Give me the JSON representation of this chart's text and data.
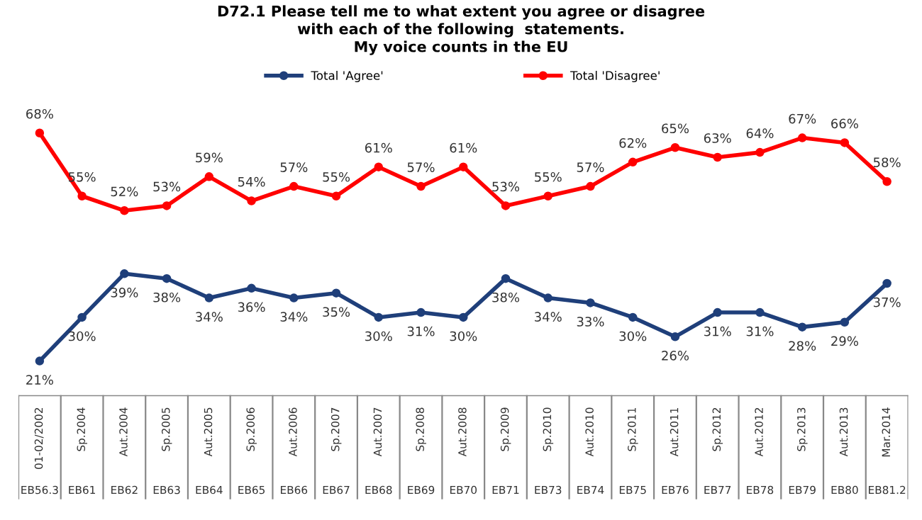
{
  "chart_data": {
    "type": "line",
    "title": "D72.1 Please tell me to what extent you agree or disagree\nwith each of the following  statements.\nMy voice counts in the EU",
    "categories": [
      "01-02/2002",
      "Sp.2004",
      "Aut.2004",
      "Sp.2005",
      "Aut.2005",
      "Sp.2006",
      "Aut.2006",
      "Sp.2007",
      "Aut.2007",
      "Sp.2008",
      "Aut.2008",
      "Sp.2009",
      "Sp.2010",
      "Aut.2010",
      "Sp.2011",
      "Aut.2011",
      "Sp.2012",
      "Aut.2012",
      "Sp.2013",
      "Aut.2013",
      "Mar.2014"
    ],
    "annotations": [
      "EB56.3",
      "EB61",
      "EB62",
      "EB63",
      "EB64",
      "EB65",
      "EB66",
      "EB67",
      "EB68",
      "EB69",
      "EB70",
      "EB71",
      "EB73",
      "EB74",
      "EB75",
      "EB76",
      "EB77",
      "EB78",
      "EB79",
      "EB80",
      "EB81.2"
    ],
    "series": [
      {
        "name": "Total 'Agree'",
        "color": "#1f3f7a",
        "values": [
          21,
          30,
          39,
          38,
          34,
          36,
          34,
          35,
          30,
          31,
          30,
          38,
          34,
          33,
          30,
          26,
          31,
          31,
          28,
          29,
          37
        ],
        "value_labels": [
          "21%",
          "30%",
          "39%",
          "38%",
          "34%",
          "36%",
          "34%",
          "35%",
          "30%",
          "31%",
          "30%",
          "38%",
          "34%",
          "33%",
          "30%",
          "26%",
          "31%",
          "31%",
          "28%",
          "29%",
          "37%"
        ]
      },
      {
        "name": "Total 'Disagree'",
        "color": "#ff0000",
        "values": [
          68,
          55,
          52,
          53,
          59,
          54,
          57,
          55,
          61,
          57,
          61,
          53,
          55,
          57,
          62,
          65,
          63,
          64,
          67,
          66,
          58
        ],
        "value_labels": [
          "68%",
          "55%",
          "52%",
          "53%",
          "59%",
          "54%",
          "57%",
          "55%",
          "61%",
          "57%",
          "61%",
          "53%",
          "55%",
          "57%",
          "62%",
          "65%",
          "63%",
          "64%",
          "67%",
          "66%",
          "58%"
        ]
      }
    ],
    "legend": "top",
    "marker": "circle",
    "line_style": "solid"
  }
}
